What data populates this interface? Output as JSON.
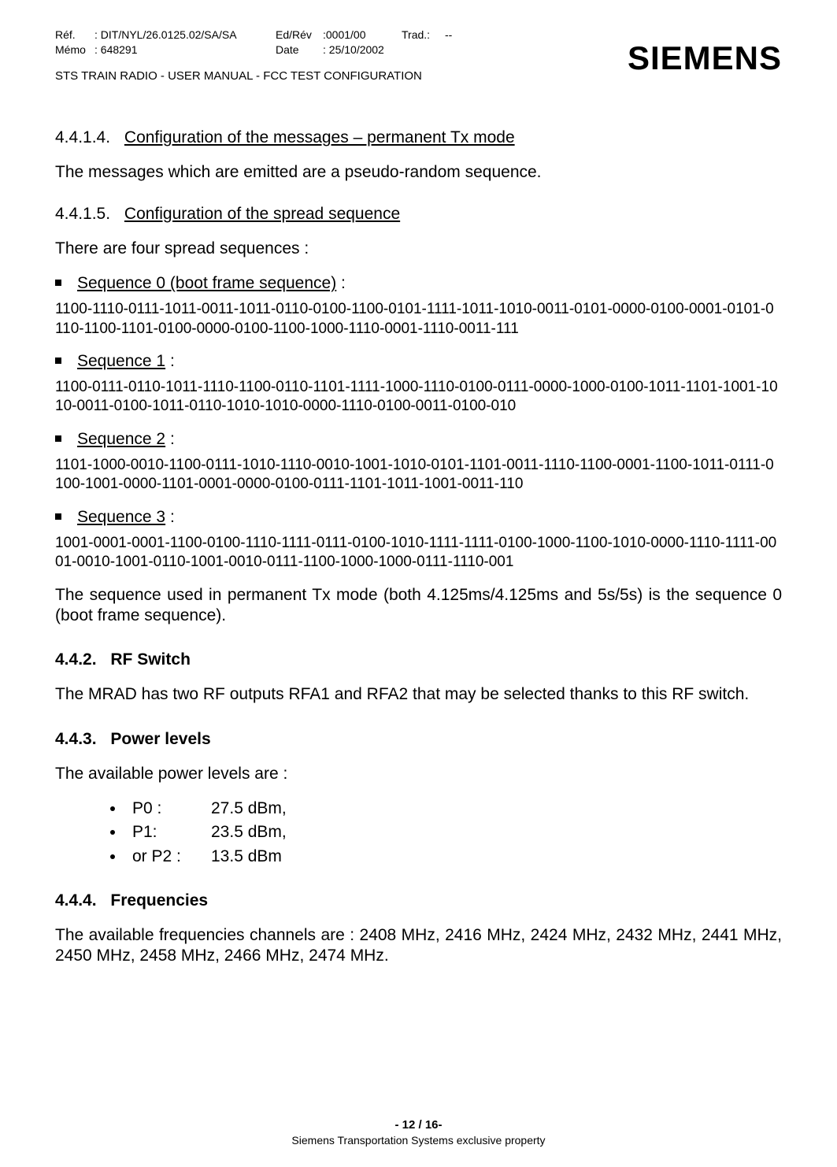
{
  "header": {
    "ref_label": "Réf.",
    "ref_value": ": DIT/NYL/26.0125.02/SA/SA",
    "memo_label": "Mémo",
    "memo_value": ": 648291",
    "edrev_label": "Ed/Rév",
    "edrev_value": ":0001/00",
    "trad_label": "Trad.:",
    "trad_value": "--",
    "date_label": "Date",
    "date_value": ": 25/10/2002",
    "doc_title": "STS TRAIN RADIO - USER MANUAL - FCC TEST CONFIGURATION",
    "logo_text": "SIEMENS"
  },
  "sections": {
    "s44114": {
      "num": "4.4.1.4.",
      "title": "Configuration of the messages – permanent Tx mode",
      "para": "The messages which are emitted are a pseudo-random sequence."
    },
    "s44115": {
      "num": "4.4.1.5.",
      "title": "Configuration of the spread sequence",
      "intro": "There are four spread sequences :",
      "seq": [
        {
          "label_u": "Sequence 0 (boot frame sequence)",
          "label_tail": " :",
          "data": "1100-1110-0111-1011-0011-1011-0110-0100-1100-0101-1111-1011-1010-0011-0101-0000-0100-0001-0101-0110-1100-1101-0100-0000-0100-1100-1000-1110-0001-1110-0011-111"
        },
        {
          "label_u": "Sequence 1",
          "label_tail": " :",
          "data": "1100-0111-0110-1011-1110-1100-0110-1101-1111-1000-1110-0100-0111-0000-1000-0100-1011-1101-1001-1010-0011-0100-1011-0110-1010-1010-0000-1110-0100-0011-0100-010"
        },
        {
          "label_u": "Sequence 2",
          "label_tail": " :",
          "data": "1101-1000-0010-1100-0111-1010-1110-0010-1001-1010-0101-1101-0011-1110-1100-0001-1100-1011-0111-0100-1001-0000-1101-0001-0000-0100-0111-1101-1011-1001-0011-110"
        },
        {
          "label_u": "Sequence 3",
          "label_tail": " :",
          "data": "1001-0001-0001-1100-0100-1110-1111-0111-0100-1010-1111-1111-0100-1000-1100-1010-0000-1110-1111-0001-0010-1001-0110-1001-0010-0111-1100-1000-1000-0111-1110-001"
        }
      ],
      "closing": "The sequence used in permanent Tx mode (both 4.125ms/4.125ms and 5s/5s) is the sequence 0 (boot frame sequence)."
    },
    "s442": {
      "num": "4.4.2.",
      "title": "RF Switch",
      "para": "The MRAD has two RF outputs RFA1 and RFA2 that may be selected thanks to this RF switch."
    },
    "s443": {
      "num": "4.4.3.",
      "title": "Power levels",
      "intro": "The available power levels are :",
      "levels": [
        {
          "label": "P0 :",
          "value": "27.5 dBm,"
        },
        {
          "label": "P1:",
          "value": "23.5 dBm,"
        },
        {
          "label": "or P2 :",
          "value": "13.5 dBm"
        }
      ]
    },
    "s444": {
      "num": "4.4.4.",
      "title": "Frequencies",
      "para": "The available frequencies channels are : 2408 MHz, 2416 MHz, 2424 MHz, 2432 MHz, 2441 MHz, 2450 MHz, 2458 MHz, 2466 MHz, 2474 MHz."
    }
  },
  "footer": {
    "page": "- 12 / 16-",
    "prop": "Siemens Transportation Systems exclusive property"
  }
}
